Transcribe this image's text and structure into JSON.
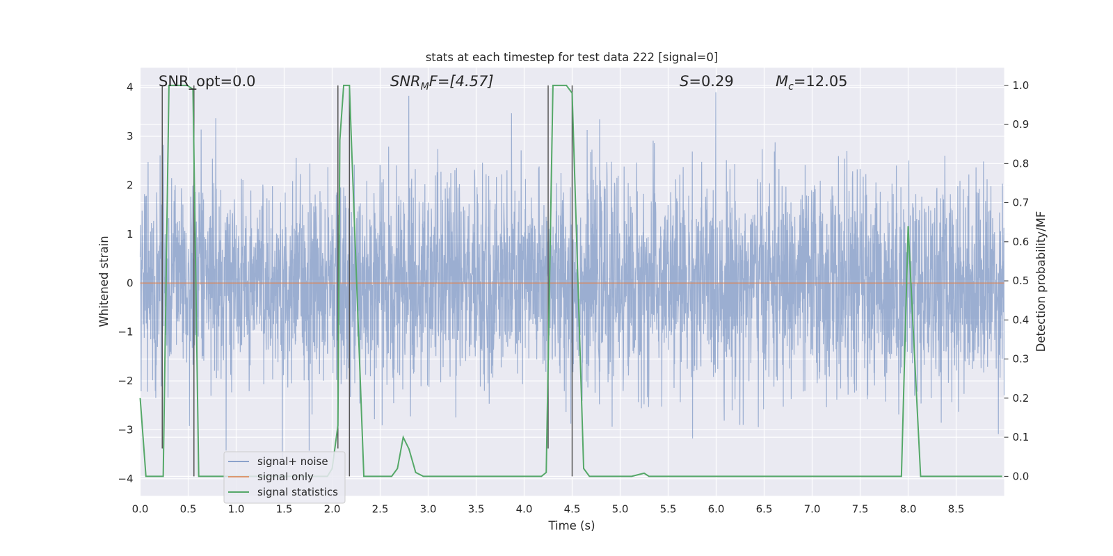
{
  "chart_data": {
    "type": "line",
    "title": "stats at each timestep for test data 222 [signal=0]",
    "xlabel": "Time (s)",
    "ylabel": "Whitened strain",
    "ylabel_right": "Detection probability/MF",
    "xlim": [
      0.0,
      9.0
    ],
    "ylim": [
      -4.35,
      4.4
    ],
    "ylim_right": [
      -0.05,
      1.045
    ],
    "xticks": [
      0.0,
      0.5,
      1.0,
      1.5,
      2.0,
      2.5,
      3.0,
      3.5,
      4.0,
      4.5,
      5.0,
      5.5,
      6.0,
      6.5,
      7.0,
      7.5,
      8.0,
      8.5
    ],
    "xtick_labels": [
      "0.0",
      "0.5",
      "1.0",
      "1.5",
      "2.0",
      "2.5",
      "3.0",
      "3.5",
      "4.0",
      "4.5",
      "5.0",
      "5.5",
      "6.0",
      "6.5",
      "7.0",
      "7.5",
      "8.0",
      "8.5"
    ],
    "yticks": [
      -4,
      -3,
      -2,
      -1,
      0,
      1,
      2,
      3,
      4
    ],
    "ytick_labels": [
      "−4",
      "−3",
      "−2",
      "−1",
      "0",
      "1",
      "2",
      "3",
      "4"
    ],
    "yticks_right": [
      0.0,
      0.1,
      0.2,
      0.3,
      0.4,
      0.5,
      0.6,
      0.7,
      0.8,
      0.9,
      1.0
    ],
    "ytick_labels_right": [
      "0.0",
      "0.1",
      "0.2",
      "0.3",
      "0.4",
      "0.5",
      "0.6",
      "0.7",
      "0.8",
      "0.9",
      "1.0"
    ],
    "annotations": {
      "snr_opt": "SNR_opt=0.0",
      "snr_mf_symbol": "SNR",
      "snr_mf_sub": "M",
      "snr_mf_rest": "F=[4.57]",
      "s_symbol": "S",
      "s_rest": "=0.29",
      "mc_symbol": "M",
      "mc_sub": "c",
      "mc_rest": "=12.05"
    },
    "legend": {
      "placement": "lower-left",
      "entries": [
        "signal+ noise",
        "signal only",
        "signal statistics"
      ]
    },
    "colors": {
      "noise": "#4c72b0",
      "signal": "#dd8452",
      "stats": "#55a868",
      "marker": "#555555",
      "panel": "#eaeaf2",
      "grid": "#ffffff"
    },
    "series": [
      {
        "name": "signal+ noise",
        "kind": "noise",
        "approx_abs_peak": 3.9,
        "seed": 222,
        "n_samples": 3600
      },
      {
        "name": "signal only",
        "kind": "constant",
        "value": 0.0
      },
      {
        "name": "signal statistics",
        "axis": "right",
        "x": [
          0.0,
          0.06,
          0.1,
          0.2,
          0.24,
          0.3,
          0.49,
          0.55,
          0.61,
          1.0,
          1.95,
          2.0,
          2.06,
          2.08,
          2.12,
          2.18,
          2.2,
          2.33,
          2.62,
          2.68,
          2.74,
          2.8,
          2.87,
          2.95,
          3.5,
          4.0,
          4.18,
          4.23,
          4.3,
          4.44,
          4.5,
          4.62,
          4.68,
          5.0,
          5.12,
          5.25,
          5.3,
          5.45,
          6.0,
          7.0,
          7.88,
          7.93,
          8.0,
          8.05,
          8.13,
          8.5,
          8.98
        ],
        "y": [
          0.2,
          0.0,
          0.0,
          0.0,
          0.0,
          1.0,
          1.0,
          0.99,
          0.0,
          0.0,
          0.0,
          0.02,
          0.13,
          0.86,
          1.0,
          1.0,
          0.86,
          0.0,
          0.0,
          0.02,
          0.1,
          0.07,
          0.01,
          0.0,
          0.0,
          0.0,
          0.0,
          0.01,
          1.0,
          1.0,
          0.98,
          0.02,
          0.0,
          0.0,
          0.0,
          0.008,
          0.0,
          0.0,
          0.0,
          0.0,
          0.0,
          0.0,
          0.64,
          0.39,
          0.0,
          0.0,
          0.0
        ]
      }
    ],
    "markers": [
      {
        "pair": 1,
        "x1": 0.23,
        "x2": 0.56
      },
      {
        "pair": 2,
        "x1": 2.06,
        "x2": 2.18
      },
      {
        "pair": 3,
        "x1": 4.25,
        "x2": 4.5
      }
    ]
  }
}
